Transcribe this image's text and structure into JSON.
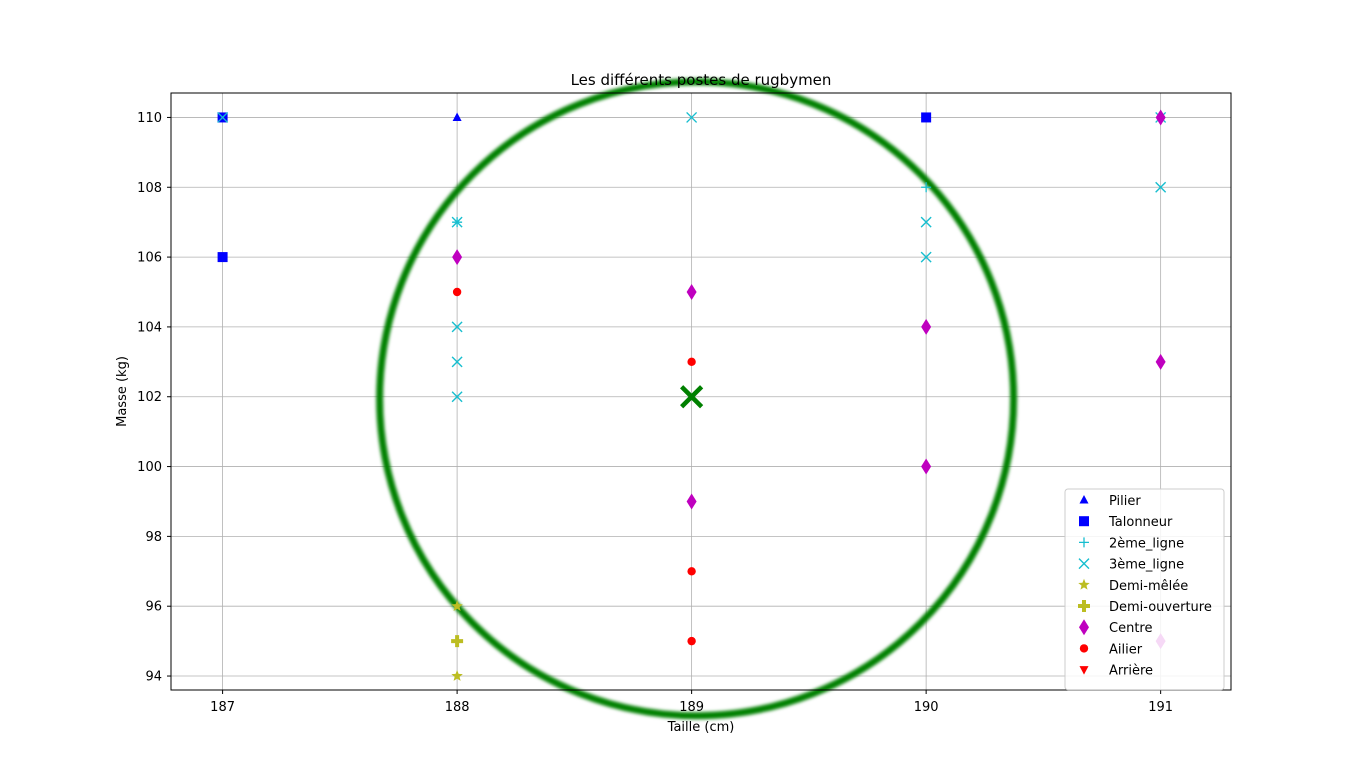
{
  "chart_data": {
    "type": "scatter",
    "title": "Les différents postes de rugbymen",
    "xlabel": "Taille (cm)",
    "ylabel": "Masse (kg)",
    "xlim": [
      186.78,
      191.3
    ],
    "ylim": [
      93.6,
      110.7
    ],
    "xticks": [
      187,
      188,
      189,
      190,
      191
    ],
    "yticks": [
      94,
      96,
      98,
      100,
      102,
      104,
      106,
      108,
      110
    ],
    "grid": true,
    "legend_position": "lower-right",
    "series": [
      {
        "name": "Pilier",
        "marker": "triangle-up",
        "color": "#0000ff",
        "points": [
          [
            188,
            110
          ],
          [
            187,
            110
          ]
        ]
      },
      {
        "name": "Talonneur",
        "marker": "square",
        "color": "#0000ff",
        "points": [
          [
            187,
            110
          ],
          [
            187,
            106
          ],
          [
            190,
            110
          ]
        ]
      },
      {
        "name": "2ème_ligne",
        "marker": "plus",
        "color": "#17becf",
        "points": [
          [
            188,
            107
          ],
          [
            190,
            108
          ]
        ]
      },
      {
        "name": "3ème_ligne",
        "marker": "x",
        "color": "#17becf",
        "points": [
          [
            187,
            110
          ],
          [
            188,
            107
          ],
          [
            188,
            104
          ],
          [
            188,
            103
          ],
          [
            188,
            102
          ],
          [
            189,
            110
          ],
          [
            190,
            107
          ],
          [
            190,
            106
          ],
          [
            191,
            110
          ],
          [
            191,
            108
          ]
        ]
      },
      {
        "name": "Demi-mêlée",
        "marker": "star",
        "color": "#bcbd22",
        "points": [
          [
            188,
            96
          ],
          [
            188,
            94
          ]
        ]
      },
      {
        "name": "Demi-ouverture",
        "marker": "plus-filled",
        "color": "#bcbd22",
        "points": [
          [
            188,
            95
          ]
        ]
      },
      {
        "name": "Centre",
        "marker": "diamond",
        "color": "#bf00bf",
        "points": [
          [
            188,
            106
          ],
          [
            189,
            105
          ],
          [
            189,
            99
          ],
          [
            190,
            104
          ],
          [
            190,
            100
          ],
          [
            191,
            110
          ],
          [
            191,
            103
          ],
          [
            191,
            95
          ]
        ]
      },
      {
        "name": "Ailier",
        "marker": "circle",
        "color": "#ff0000",
        "points": [
          [
            188,
            105
          ],
          [
            189,
            103
          ],
          [
            189,
            97
          ],
          [
            189,
            95
          ]
        ]
      },
      {
        "name": "Arrière",
        "marker": "triangle-down",
        "color": "#ff0000",
        "points": []
      }
    ],
    "highlight": {
      "point": [
        189,
        102
      ],
      "marker": "x",
      "color": "#008000"
    }
  }
}
